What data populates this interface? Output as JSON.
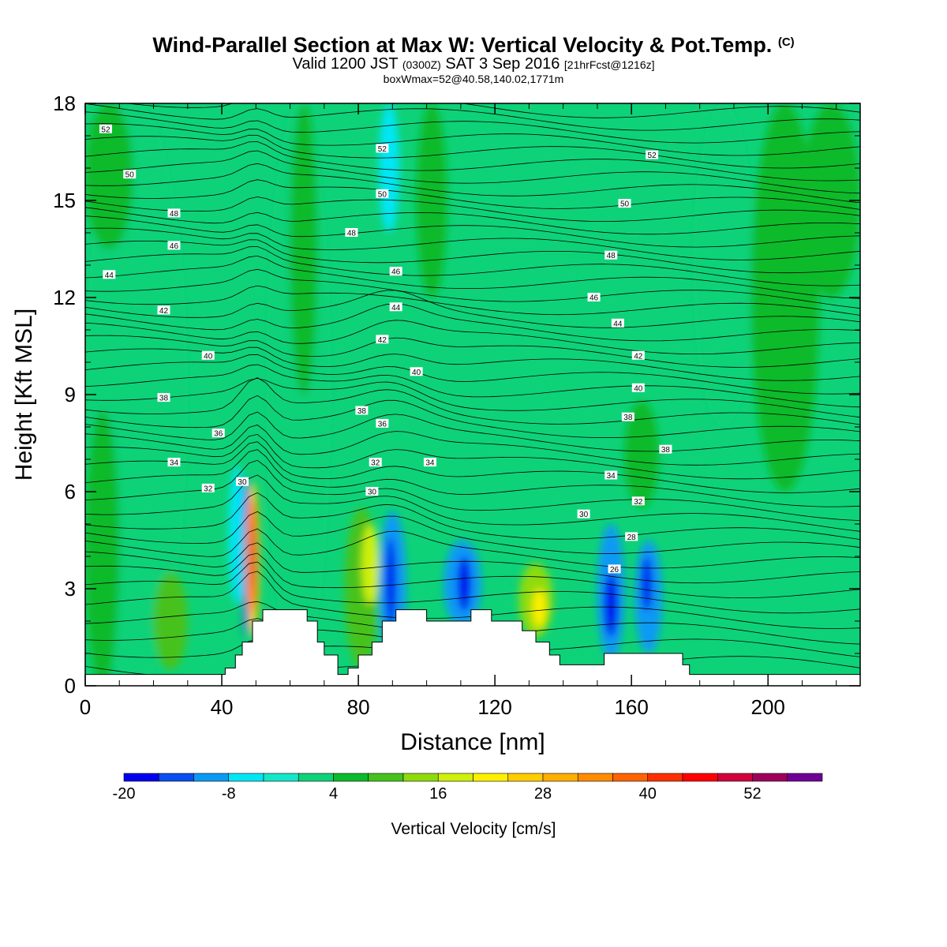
{
  "title": {
    "main": "Wind-Parallel Section at Max W: Vertical Velocity & Pot.Temp.",
    "mark": "(C)",
    "valid_pre": "Valid 1200 JST",
    "valid_utc": "(0300Z)",
    "valid_date": "SAT 3 Sep 2016",
    "valid_fcst": "[21hrFcst@1216z]",
    "box": "boxWmax=52@40.58,140.02,1771m"
  },
  "chart_data": {
    "type": "heatmap",
    "xlabel": "Distance [nm]",
    "ylabel": "Height [Kft MSL]",
    "xlim": [
      0,
      227
    ],
    "ylim": [
      0,
      18
    ],
    "xticks": [
      0,
      40,
      80,
      120,
      160,
      200
    ],
    "yticks": [
      0,
      3,
      6,
      9,
      12,
      15,
      18
    ],
    "colorbar": {
      "title": "Vertical Velocity [cm/s]",
      "levels": [
        -20,
        -16,
        -12,
        -8,
        -4,
        0,
        4,
        8,
        12,
        16,
        20,
        24,
        28,
        32,
        36,
        40,
        44,
        48,
        52,
        56,
        60
      ],
      "colors": [
        "#0000ee",
        "#0a4ef0",
        "#0a9af5",
        "#00e6f5",
        "#14e6c8",
        "#0ed278",
        "#0cba2c",
        "#46c21c",
        "#8edb0c",
        "#cff00a",
        "#fff000",
        "#ffcc00",
        "#ffae00",
        "#ff8c00",
        "#ff6400",
        "#ff3000",
        "#ff0000",
        "#d2003c",
        "#9e005a",
        "#6e0096"
      ],
      "labels": [
        -20,
        -8,
        4,
        16,
        28,
        40,
        52
      ]
    },
    "terrain": [
      [
        0,
        0.35
      ],
      [
        40,
        0.35
      ],
      [
        41,
        0.35
      ],
      [
        41,
        0.55
      ],
      [
        44,
        0.55
      ],
      [
        44,
        0.95
      ],
      [
        46,
        0.95
      ],
      [
        46,
        1.35
      ],
      [
        49,
        1.35
      ],
      [
        49,
        2.0
      ],
      [
        52,
        2.0
      ],
      [
        52,
        2.35
      ],
      [
        65,
        2.35
      ],
      [
        65,
        2.0
      ],
      [
        68,
        2.0
      ],
      [
        68,
        1.35
      ],
      [
        70,
        1.35
      ],
      [
        70,
        0.95
      ],
      [
        74,
        0.95
      ],
      [
        74,
        0.35
      ],
      [
        77,
        0.35
      ],
      [
        77,
        0.55
      ],
      [
        80,
        0.55
      ],
      [
        80,
        0.95
      ],
      [
        84,
        0.95
      ],
      [
        84,
        1.35
      ],
      [
        87,
        1.35
      ],
      [
        87,
        2.0
      ],
      [
        91,
        2.0
      ],
      [
        91,
        2.35
      ],
      [
        100,
        2.35
      ],
      [
        100,
        2.0
      ],
      [
        113,
        2.0
      ],
      [
        113,
        2.35
      ],
      [
        119,
        2.35
      ],
      [
        119,
        2.0
      ],
      [
        128,
        2.0
      ],
      [
        128,
        1.7
      ],
      [
        132,
        1.7
      ],
      [
        132,
        1.35
      ],
      [
        136,
        1.35
      ],
      [
        136,
        0.95
      ],
      [
        139,
        0.95
      ],
      [
        139,
        0.65
      ],
      [
        152,
        0.65
      ],
      [
        152,
        1.0
      ],
      [
        175,
        1.0
      ],
      [
        175,
        0.65
      ],
      [
        177,
        0.65
      ],
      [
        177,
        0.35
      ],
      [
        227,
        0.35
      ]
    ],
    "w_field_cells": [
      {
        "x": [
          0,
          30
        ],
        "y": [
          0,
          18
        ],
        "w": 2
      },
      {
        "x": [
          0,
          14
        ],
        "y": [
          13.5,
          18
        ],
        "w": 6
      },
      {
        "x": [
          0,
          10
        ],
        "y": [
          0,
          8.5
        ],
        "w": 6
      },
      {
        "x": [
          20,
          30
        ],
        "y": [
          0.5,
          3.5
        ],
        "w": 10
      },
      {
        "x": [
          42,
          47
        ],
        "y": [
          2.5,
          6.8
        ],
        "w": -6
      },
      {
        "x": [
          46,
          48
        ],
        "y": [
          1.5,
          6.5
        ],
        "w": -16
      },
      {
        "x": [
          47,
          51
        ],
        "y": [
          1.5,
          6.3
        ],
        "w": 24
      },
      {
        "x": [
          48,
          50
        ],
        "y": [
          2.2,
          5.8
        ],
        "w": 40
      },
      {
        "x": [
          48.6,
          49.6
        ],
        "y": [
          3.0,
          5.0
        ],
        "w": 48
      },
      {
        "x": [
          53,
          72
        ],
        "y": [
          0.5,
          18
        ],
        "w": 2
      },
      {
        "x": [
          60,
          68
        ],
        "y": [
          9,
          18
        ],
        "w": 6
      },
      {
        "x": [
          76,
          86
        ],
        "y": [
          0.5,
          5.5
        ],
        "w": 8
      },
      {
        "x": [
          81,
          86
        ],
        "y": [
          2.5,
          5.0
        ],
        "w": 16
      },
      {
        "x": [
          86,
          94
        ],
        "y": [
          0.8,
          5.4
        ],
        "w": -12
      },
      {
        "x": [
          88,
          91
        ],
        "y": [
          1.8,
          4.6
        ],
        "w": -20
      },
      {
        "x": [
          86,
          92
        ],
        "y": [
          14,
          18
        ],
        "w": -6
      },
      {
        "x": [
          97,
          106
        ],
        "y": [
          12,
          18
        ],
        "w": 6
      },
      {
        "x": [
          105,
          116
        ],
        "y": [
          1.8,
          4.5
        ],
        "w": -12
      },
      {
        "x": [
          109,
          113
        ],
        "y": [
          2.3,
          4.0
        ],
        "w": -20
      },
      {
        "x": [
          127,
          137
        ],
        "y": [
          1.5,
          3.8
        ],
        "w": 12
      },
      {
        "x": [
          131,
          135
        ],
        "y": [
          1.8,
          3.0
        ],
        "w": 20
      },
      {
        "x": [
          150,
          158
        ],
        "y": [
          0.8,
          5.0
        ],
        "w": -10
      },
      {
        "x": [
          152,
          156
        ],
        "y": [
          1.5,
          3.5
        ],
        "w": -18
      },
      {
        "x": [
          161,
          169
        ],
        "y": [
          1.0,
          4.5
        ],
        "w": -12
      },
      {
        "x": [
          163,
          166
        ],
        "y": [
          2.3,
          4.0
        ],
        "w": -20
      },
      {
        "x": [
          158,
          168
        ],
        "y": [
          5.5,
          8.8
        ],
        "w": 6
      },
      {
        "x": [
          178,
          196
        ],
        "y": [
          8,
          18
        ],
        "w": 2
      },
      {
        "x": [
          195,
          215
        ],
        "y": [
          6,
          18
        ],
        "w": 4
      },
      {
        "x": [
          210,
          227
        ],
        "y": [
          12,
          18
        ],
        "w": 6
      }
    ],
    "theta_contours": {
      "levels": [
        26,
        28,
        30,
        32,
        34,
        36,
        38,
        40,
        42,
        44,
        46,
        48,
        50,
        52
      ],
      "labels": [
        {
          "text": "52",
          "x": 6,
          "y": 17.2
        },
        {
          "text": "50",
          "x": 13,
          "y": 15.8
        },
        {
          "text": "48",
          "x": 26,
          "y": 14.6
        },
        {
          "text": "46",
          "x": 26,
          "y": 13.6
        },
        {
          "text": "44",
          "x": 7,
          "y": 12.7
        },
        {
          "text": "42",
          "x": 23,
          "y": 11.6
        },
        {
          "text": "40",
          "x": 36,
          "y": 10.2
        },
        {
          "text": "38",
          "x": 23,
          "y": 8.9
        },
        {
          "text": "36",
          "x": 39,
          "y": 7.8
        },
        {
          "text": "34",
          "x": 26,
          "y": 6.9
        },
        {
          "text": "32",
          "x": 36,
          "y": 6.1
        },
        {
          "text": "30",
          "x": 46,
          "y": 6.3
        },
        {
          "text": "52",
          "x": 87,
          "y": 16.6
        },
        {
          "text": "50",
          "x": 87,
          "y": 15.2
        },
        {
          "text": "48",
          "x": 78,
          "y": 14.0
        },
        {
          "text": "46",
          "x": 91,
          "y": 12.8
        },
        {
          "text": "44",
          "x": 91,
          "y": 11.7
        },
        {
          "text": "42",
          "x": 87,
          "y": 10.7
        },
        {
          "text": "40",
          "x": 97,
          "y": 9.7
        },
        {
          "text": "38",
          "x": 81,
          "y": 8.5
        },
        {
          "text": "36",
          "x": 87,
          "y": 8.1
        },
        {
          "text": "32",
          "x": 85,
          "y": 6.9
        },
        {
          "text": "34",
          "x": 101,
          "y": 6.9
        },
        {
          "text": "30",
          "x": 84,
          "y": 6.0
        },
        {
          "text": "52",
          "x": 166,
          "y": 16.4
        },
        {
          "text": "50",
          "x": 158,
          "y": 14.9
        },
        {
          "text": "48",
          "x": 154,
          "y": 13.3
        },
        {
          "text": "46",
          "x": 149,
          "y": 12.0
        },
        {
          "text": "44",
          "x": 156,
          "y": 11.2
        },
        {
          "text": "42",
          "x": 162,
          "y": 10.2
        },
        {
          "text": "40",
          "x": 162,
          "y": 9.2
        },
        {
          "text": "38",
          "x": 159,
          "y": 8.3
        },
        {
          "text": "38",
          "x": 170,
          "y": 7.3
        },
        {
          "text": "34",
          "x": 154,
          "y": 6.5
        },
        {
          "text": "32",
          "x": 162,
          "y": 5.7
        },
        {
          "text": "30",
          "x": 146,
          "y": 5.3
        },
        {
          "text": "28",
          "x": 160,
          "y": 4.6
        },
        {
          "text": "26",
          "x": 155,
          "y": 3.6
        }
      ]
    }
  }
}
